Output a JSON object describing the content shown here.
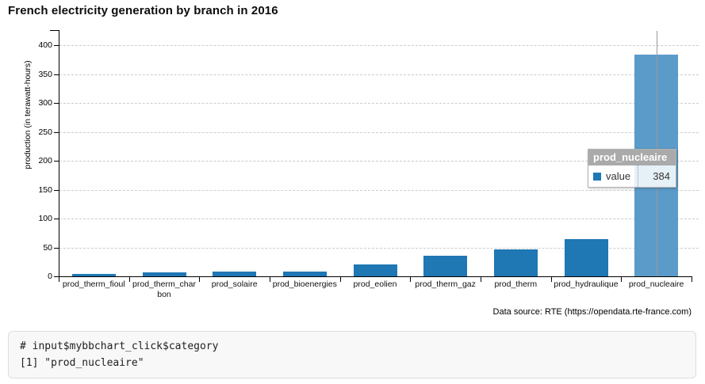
{
  "title": "French electricity generation by branch in 2016",
  "chart_data": {
    "type": "bar",
    "title": "French electricity generation by branch in 2016",
    "xlabel": "",
    "ylabel": "production (in terawatt-hours)",
    "categories": [
      "prod_therm_fioul",
      "prod_therm_charbon",
      "prod_solaire",
      "prod_bioenergies",
      "prod_eolien",
      "prod_therm_gaz",
      "prod_therm",
      "prod_hydraulique",
      "prod_nucleaire"
    ],
    "values": [
      3.6,
      7.3,
      8.3,
      8.3,
      20.7,
      35.2,
      45.9,
      63.9,
      384
    ],
    "yticks": [
      0,
      50,
      100,
      150,
      200,
      250,
      300,
      350,
      400
    ],
    "ylim": [
      0,
      426
    ],
    "grid": "horizontal-dashed",
    "legend": "none",
    "bar_color": "#1f77b4",
    "highlighted_category": "prod_nucleaire",
    "highlight_color": "#5b9bc9",
    "crosshair_color": "#999999"
  },
  "tooltip": {
    "title": "prod_nucleaire",
    "series_label": "value",
    "value": "384",
    "swatch_color": "#1f77b4"
  },
  "source_note": "Data source: RTE (https://opendata.rte-france.com)",
  "console": {
    "lines": [
      "# input$mybbchart_click$category",
      "[1] \"prod_nucleaire\""
    ]
  }
}
